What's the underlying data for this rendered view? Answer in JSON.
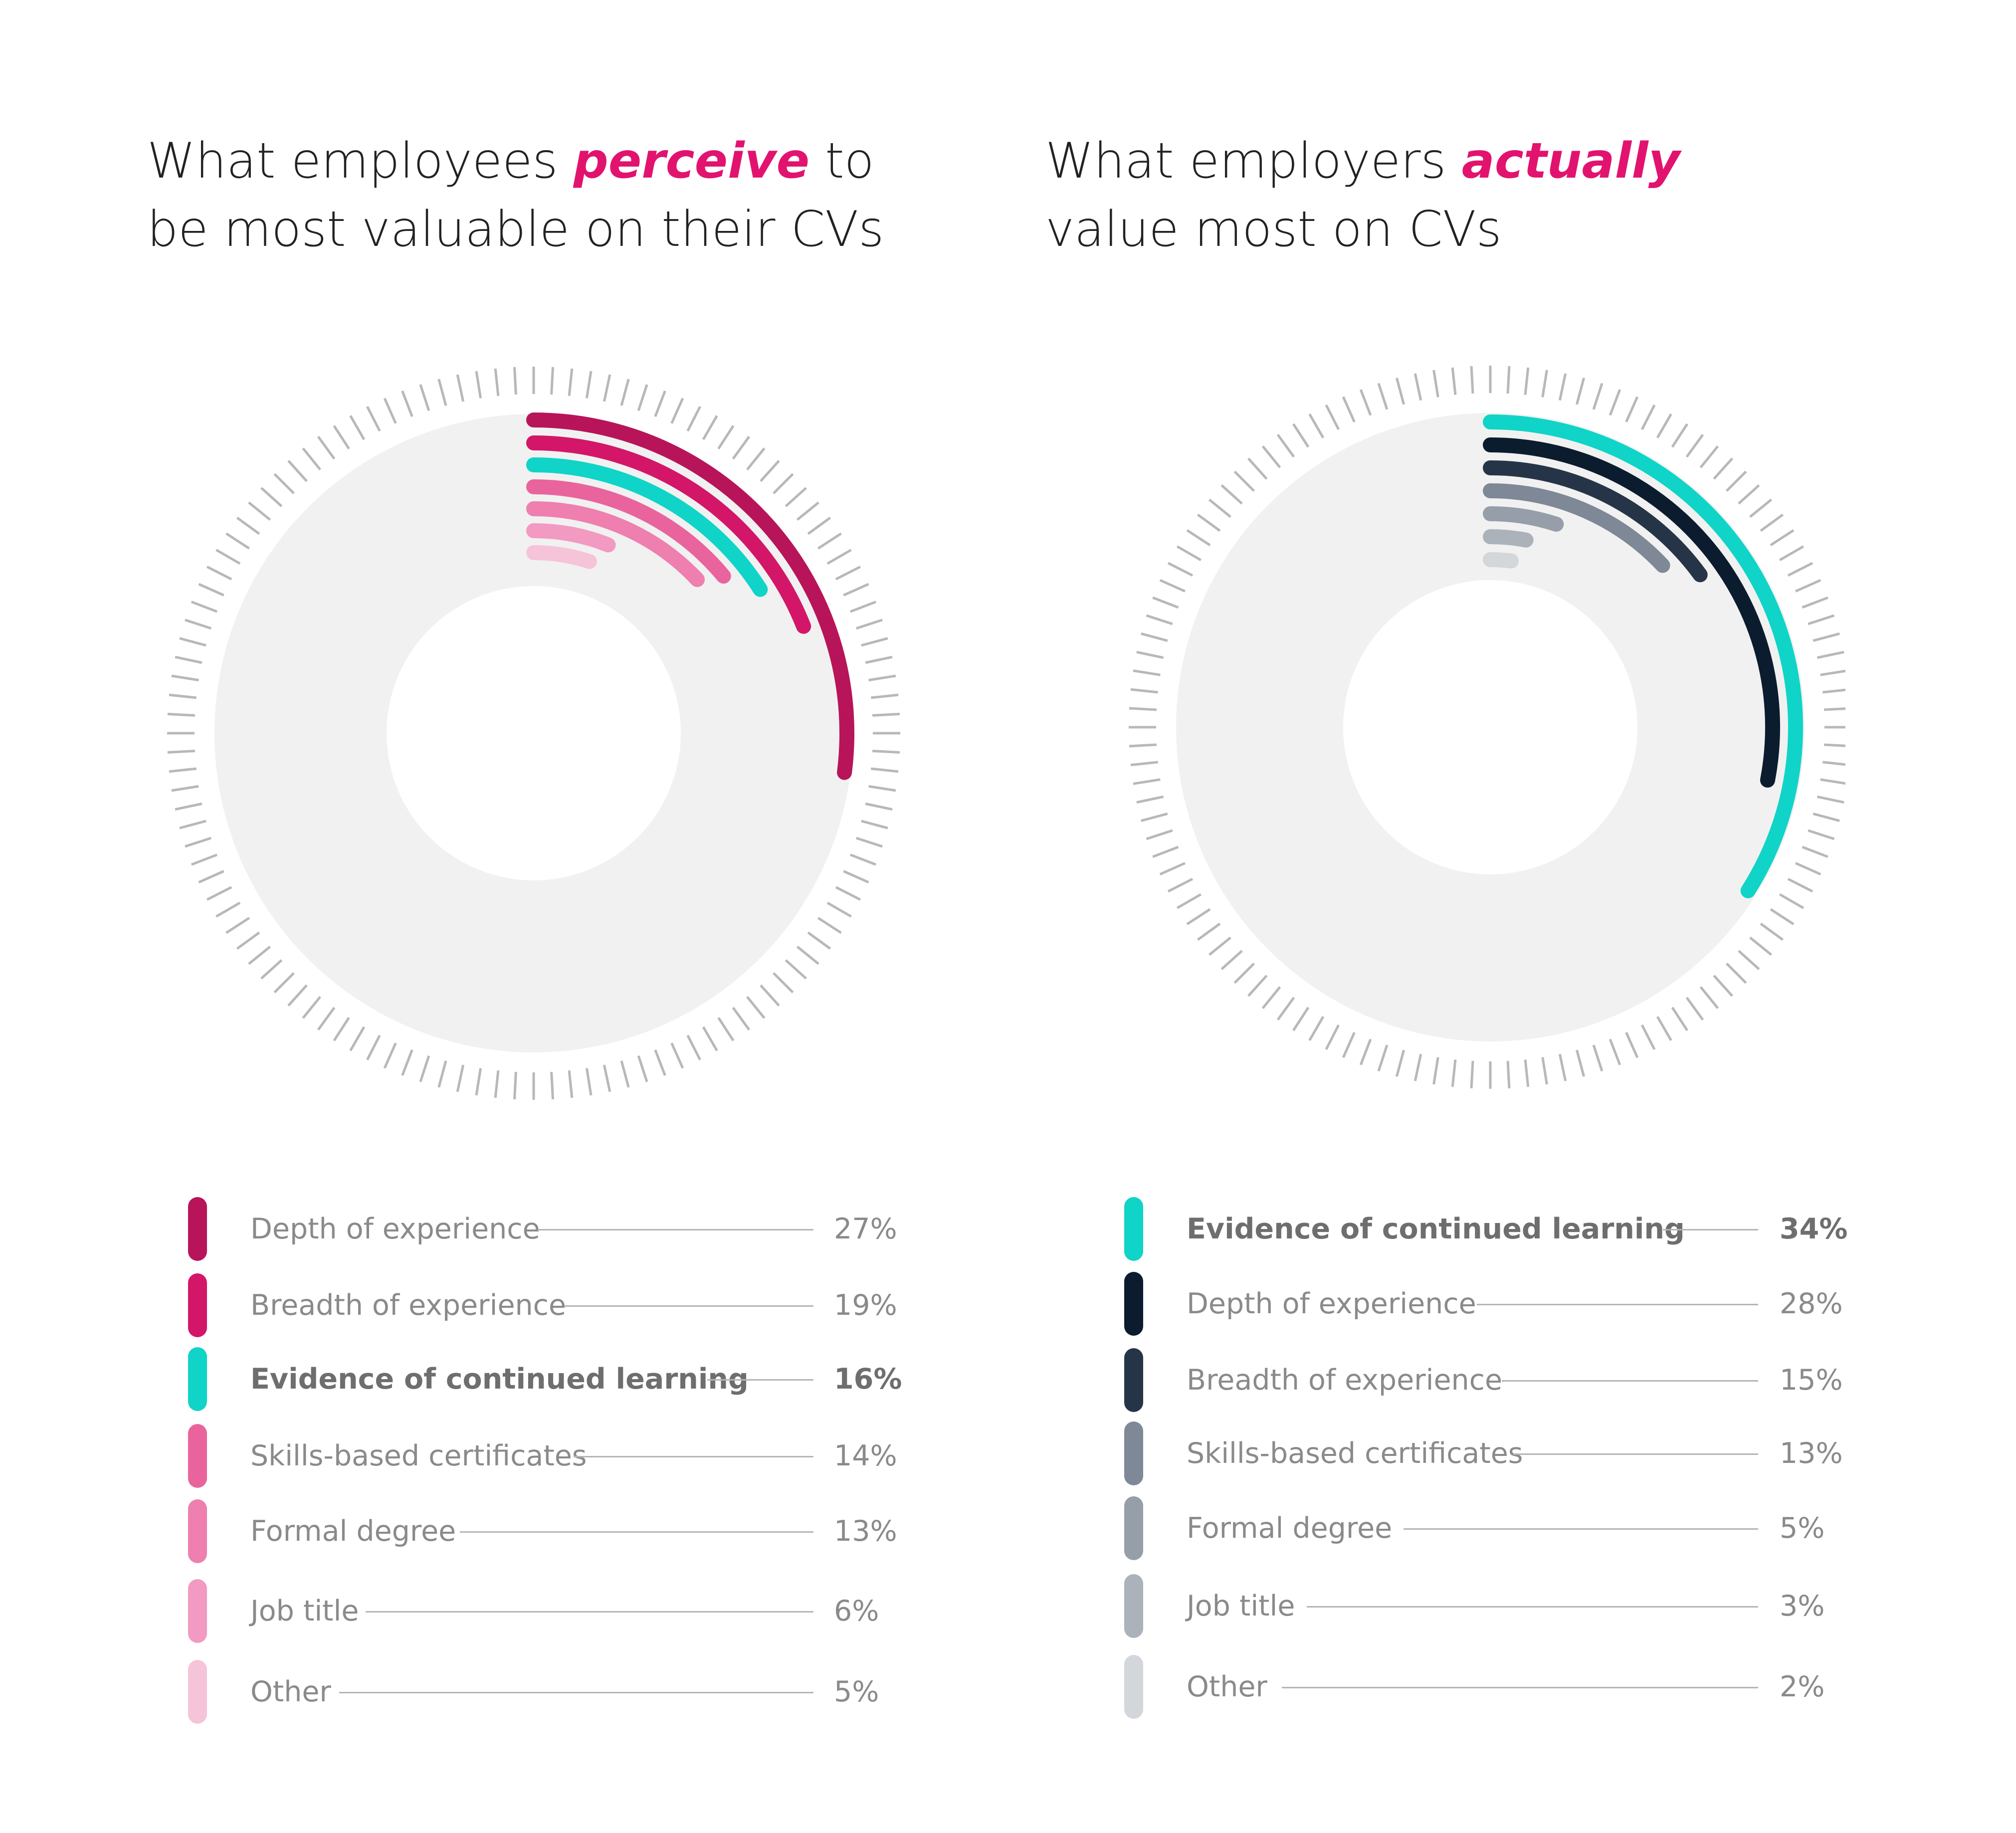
{
  "colors": {
    "accent": "#e2136e",
    "track": "#f1f1f1",
    "ticks": "#b8b8b8"
  },
  "chart_data": [
    {
      "type": "radial-bar",
      "title_parts": [
        "What employees ",
        "perceive",
        " to be most valuable on their CVs"
      ],
      "value_unit": "%",
      "categories": [
        "Depth of experience",
        "Breadth of experience",
        "Evidence of continued learning",
        "Skills-based certificates",
        "Formal degree",
        "Job title",
        "Other"
      ],
      "values": [
        27,
        19,
        16,
        14,
        13,
        6,
        5
      ],
      "value_labels": [
        "27%",
        "19%",
        "16%",
        "14%",
        "13%",
        "6%",
        "5%"
      ],
      "highlight": "Evidence of continued learning",
      "colors": [
        "#b8145a",
        "#d31668",
        "#0fd4c7",
        "#e9649c",
        "#ee7fae",
        "#f29ac1",
        "#f6c4d9"
      ]
    },
    {
      "type": "radial-bar",
      "title_parts": [
        "What employers ",
        "actually",
        " value most on CVs"
      ],
      "value_unit": "%",
      "categories": [
        "Evidence of continued learning",
        "Depth of experience",
        "Breadth of experience",
        "Skills-based certificates",
        "Formal degree",
        "Job title",
        "Other"
      ],
      "values": [
        34,
        28,
        15,
        13,
        5,
        3,
        2
      ],
      "value_labels": [
        "34%",
        "28%",
        "15%",
        "13%",
        "5%",
        "3%",
        "2%"
      ],
      "highlight": "Evidence of continued learning",
      "colors": [
        "#0fd4c7",
        "#0b1c2e",
        "#253547",
        "#7e8896",
        "#959ea9",
        "#abb2ba",
        "#d3d6da"
      ]
    }
  ]
}
